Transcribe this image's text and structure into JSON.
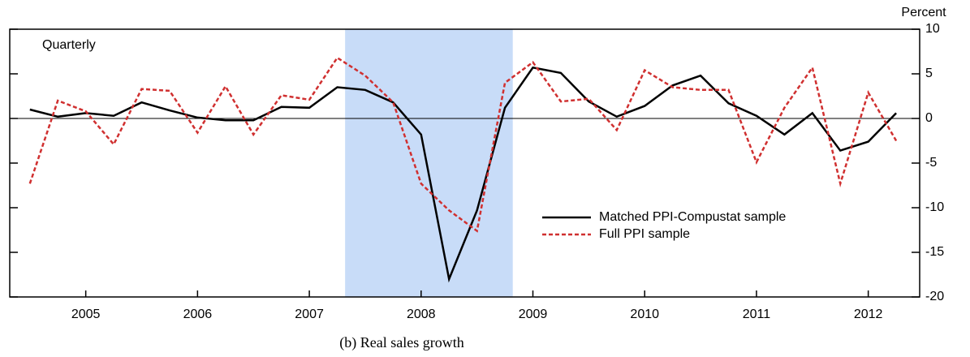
{
  "chart_data": {
    "type": "line",
    "title": "Quarterly",
    "y_axis_label": "Percent",
    "caption": "(b) Real sales growth",
    "x": [
      2005.0,
      2005.25,
      2005.5,
      2005.75,
      2006.0,
      2006.25,
      2006.5,
      2006.75,
      2007.0,
      2007.25,
      2007.5,
      2007.75,
      2008.0,
      2008.25,
      2008.5,
      2008.75,
      2009.0,
      2009.25,
      2009.5,
      2009.75,
      2010.0,
      2010.25,
      2010.5,
      2010.75,
      2011.0,
      2011.25,
      2011.5,
      2011.75,
      2012.0,
      2012.25,
      2012.5,
      2012.75
    ],
    "series": [
      {
        "name": "Matched PPI-Compustat sample",
        "color": "#000000",
        "dash": false,
        "values": [
          1.0,
          0.2,
          0.6,
          0.3,
          1.8,
          0.9,
          0.1,
          -0.2,
          -0.2,
          1.3,
          1.2,
          3.5,
          3.2,
          1.8,
          -1.8,
          -18.0,
          -10.3,
          1.2,
          5.7,
          5.1,
          1.9,
          0.2,
          1.4,
          3.7,
          4.8,
          1.7,
          0.3,
          -1.8,
          0.6,
          -3.6,
          -2.6,
          0.6
        ]
      },
      {
        "name": "Full PPI sample",
        "color": "#d03030",
        "dash": true,
        "values": [
          -7.3,
          2.0,
          0.8,
          -2.9,
          3.3,
          3.1,
          -1.6,
          3.6,
          -1.8,
          2.6,
          2.1,
          6.8,
          4.8,
          1.8,
          -7.3,
          -10.3,
          -12.6,
          4.0,
          6.3,
          1.9,
          2.2,
          -1.3,
          5.4,
          3.5,
          3.2,
          3.2,
          -4.9,
          1.2,
          5.7,
          -7.3,
          2.9,
          -2.5
        ]
      }
    ],
    "shade": [
      2007.82,
      2009.32
    ],
    "shade_color": "#c8dcf8",
    "xlim": [
      2004.82,
      2012.96
    ],
    "xticks": [
      {
        "value": 2005.5,
        "label": "2005"
      },
      {
        "value": 2006.5,
        "label": "2006"
      },
      {
        "value": 2007.5,
        "label": "2007"
      },
      {
        "value": 2008.5,
        "label": "2008"
      },
      {
        "value": 2009.5,
        "label": "2009"
      },
      {
        "value": 2010.5,
        "label": "2010"
      },
      {
        "value": 2011.5,
        "label": "2011"
      },
      {
        "value": 2012.5,
        "label": "2012"
      }
    ],
    "ylim": [
      -20,
      10
    ],
    "yticks": [
      10,
      5,
      0,
      -5,
      -10,
      -15,
      -20
    ],
    "zero_line": true,
    "legend": "lower right"
  }
}
